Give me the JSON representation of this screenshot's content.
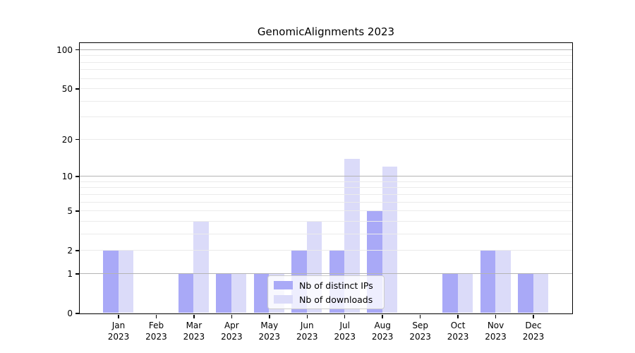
{
  "title": "GenomicAlignments 2023",
  "chart_data": {
    "type": "bar",
    "title": "GenomicAlignments 2023",
    "categories": [
      "Jan\n2023",
      "Feb\n2023",
      "Mar\n2023",
      "Apr\n2023",
      "May\n2023",
      "Jun\n2023",
      "Jul\n2023",
      "Aug\n2023",
      "Sep\n2023",
      "Oct\n2023",
      "Nov\n2023",
      "Dec\n2023"
    ],
    "series": [
      {
        "name": "Nb of distinct IPs",
        "color": "#a9a9f7",
        "values": [
          2,
          0,
          1,
          1,
          1,
          2,
          2,
          5,
          0,
          1,
          2,
          1
        ]
      },
      {
        "name": "Nb of downloads",
        "color": "#dbdbf9",
        "values": [
          2,
          0,
          4,
          1,
          1,
          4,
          14,
          12,
          0,
          1,
          2,
          1
        ]
      }
    ],
    "yscale": "log1p",
    "ymax": 113,
    "ylim": [
      0,
      113
    ],
    "y_tick_values": [
      0,
      1,
      2,
      5,
      10,
      20,
      50,
      100
    ],
    "y_major_gridlines": [
      1,
      10,
      100
    ],
    "y_minor_gridlines": [
      2,
      3,
      4,
      5,
      6,
      7,
      8,
      9,
      20,
      30,
      40,
      50,
      60,
      70,
      80,
      90
    ],
    "grid": true,
    "xlabel": "",
    "ylabel": "",
    "legend_position": "lower center"
  },
  "legend": {
    "items": [
      {
        "label": "Nb of distinct IPs",
        "color": "#a9a9f7"
      },
      {
        "label": "Nb of downloads",
        "color": "#dbdbf9"
      }
    ]
  },
  "colors": {
    "background": "#ffffff",
    "spine": "#000000",
    "major_grid": "#b4b4b4",
    "minor_grid": "#ebebeb",
    "bar_dark": "#a9a9f7",
    "bar_light": "#dbdbf9",
    "legend_border": "#cccccc",
    "text": "#000000"
  }
}
